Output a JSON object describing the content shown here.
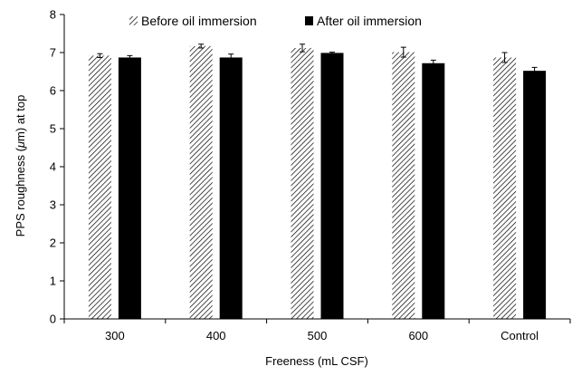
{
  "chart_data": {
    "type": "bar",
    "title": "",
    "xlabel": "Freeness (mL CSF)",
    "ylabel_parts": [
      "PPS roughness (",
      "μ",
      "m) at top"
    ],
    "categories": [
      "300",
      "400",
      "500",
      "600",
      "Control"
    ],
    "ylim": [
      0,
      8
    ],
    "yticks": [
      "0",
      "1",
      "2",
      "3",
      "4",
      "5",
      "6",
      "7",
      "8"
    ],
    "grid": false,
    "legend_position": "top",
    "series": [
      {
        "name": "Before oil immersion",
        "fill": "hatched",
        "color": "#000000",
        "values": [
          6.92,
          7.17,
          7.12,
          7.01,
          6.87
        ],
        "errors": [
          0.05,
          0.05,
          0.1,
          0.13,
          0.13
        ]
      },
      {
        "name": "After oil immersion",
        "fill": "solid",
        "color": "#000000",
        "values": [
          6.87,
          6.87,
          6.99,
          6.72,
          6.52
        ],
        "errors": [
          0.05,
          0.09,
          0.02,
          0.08,
          0.09
        ]
      }
    ]
  }
}
